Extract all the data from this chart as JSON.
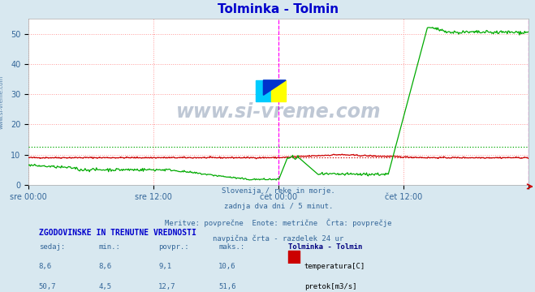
{
  "title": "Tolminka - Tolmin",
  "title_color": "#0000cc",
  "bg_color": "#d8e8f0",
  "plot_bg_color": "#ffffff",
  "grid_color": "#ff9999",
  "x_labels": [
    "sre 00:00",
    "sre 12:00",
    "čet 00:00",
    "čet 12:00",
    ""
  ],
  "x_label_color": "#336699",
  "y_min": 0,
  "y_max": 55,
  "y_ticks": [
    0,
    10,
    20,
    30,
    40,
    50
  ],
  "temp_color": "#cc0000",
  "flow_color": "#00aa00",
  "temp_avg": 9.1,
  "flow_avg": 12.7,
  "vline_color": "#ff00ff",
  "watermark": "www.si-vreme.com",
  "watermark_color": "#1a3a6a",
  "subtitle_lines": [
    "Slovenija / reke in morje.",
    "zadnja dva dni / 5 minut.",
    "Meritve: povprečne  Enote: metrične  Črta: povprečje",
    "navpična črta - razdelek 24 ur"
  ],
  "subtitle_color": "#336699",
  "table_header": "ZGODOVINSKE IN TRENUTNE VREDNOSTI",
  "table_header_color": "#0000cc",
  "col_headers": [
    "sedaj:",
    "min.:",
    "povpr.:",
    "maks.:"
  ],
  "col_header_color": "#336699",
  "station_label": "Tolminka - Tolmin",
  "station_color": "#000080",
  "temp_values": [
    "8,6",
    "8,6",
    "9,1",
    "10,6"
  ],
  "flow_values": [
    "50,7",
    "4,5",
    "12,7",
    "51,6"
  ],
  "legend_items": [
    {
      "label": "temperatura[C]",
      "color": "#cc0000"
    },
    {
      "label": "pretok[m3/s]",
      "color": "#00aa00"
    }
  ],
  "n_points": 576,
  "ylabel_color": "#336699",
  "logo_colors": [
    "#00ccff",
    "#ffff00",
    "#0033cc"
  ],
  "left_label": "www.si-vreme.com",
  "left_label_color": "#336699"
}
